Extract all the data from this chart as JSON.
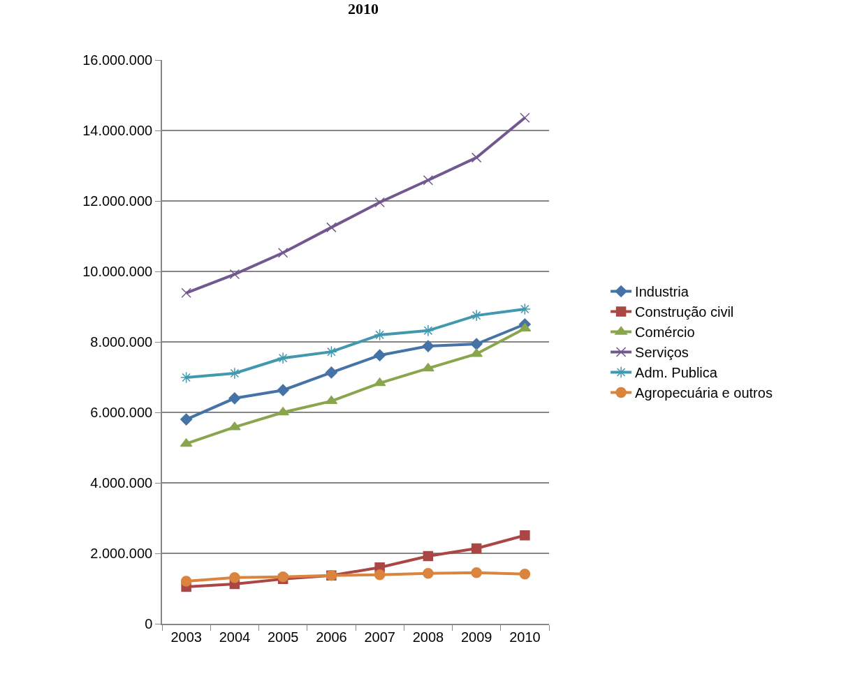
{
  "chart_data": {
    "type": "line",
    "title": "2010",
    "categories": [
      "2003",
      "2004",
      "2005",
      "2006",
      "2007",
      "2008",
      "2009",
      "2010"
    ],
    "series": [
      {
        "name": "Industria",
        "color": "#4572a7",
        "marker": "diamond",
        "values": [
          5800000,
          6400000,
          6630000,
          7130000,
          7620000,
          7880000,
          7940000,
          8500000
        ]
      },
      {
        "name": "Construção civil",
        "color": "#aa4643",
        "marker": "square",
        "values": [
          1050000,
          1130000,
          1270000,
          1370000,
          1600000,
          1920000,
          2140000,
          2510000
        ]
      },
      {
        "name": "Comércio",
        "color": "#89a54e",
        "marker": "triangle",
        "values": [
          5110000,
          5580000,
          6000000,
          6320000,
          6830000,
          7250000,
          7660000,
          8380000
        ]
      },
      {
        "name": "Serviços",
        "color": "#71588f",
        "marker": "cross",
        "values": [
          9390000,
          9920000,
          10530000,
          11250000,
          11960000,
          12590000,
          13230000,
          14360000
        ]
      },
      {
        "name": "Adm. Publica",
        "color": "#4198af",
        "marker": "cross",
        "values": [
          6990000,
          7110000,
          7540000,
          7720000,
          8200000,
          8320000,
          8750000,
          8930000
        ]
      },
      {
        "name": "Agropecuária e outros",
        "color": "#db843d",
        "marker": "circle",
        "values": [
          1210000,
          1310000,
          1330000,
          1370000,
          1390000,
          1430000,
          1450000,
          1410000
        ]
      }
    ],
    "ylim": [
      0,
      16000000
    ],
    "yticks": [
      0,
      {
        "value": 2000000,
        "label": "2.000.000"
      },
      {
        "value": 4000000,
        "label": "4.000.000"
      },
      {
        "value": 6000000,
        "label": "6.000.000"
      },
      {
        "value": 8000000,
        "label": "8.000.000"
      },
      {
        "value": 10000000,
        "label": "10.000.000"
      },
      {
        "value": 12000000,
        "label": "12.000.000"
      },
      {
        "value": 14000000,
        "label": "14.000.000"
      },
      {
        "value": 16000000,
        "label": "16.000.000"
      }
    ],
    "grid": "y",
    "legend": "right",
    "line_style": "solid"
  }
}
